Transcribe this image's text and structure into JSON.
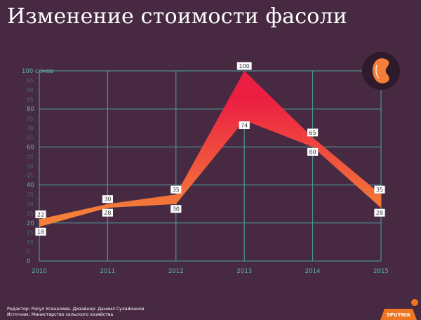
{
  "title": "Изменение стоимости фасоли",
  "credits": {
    "editor": "Редактор: Расул Усеналиев. Дизайнер: Даниил Сулайманов",
    "source": "Источник: Министерство сельского хозяйства"
  },
  "logo_text": "SPUTNIK",
  "colors": {
    "background": "#472a42",
    "grid": "#4aa7a3",
    "axis_text": "#5cb8b3",
    "band_low": "#f47f38",
    "band_high": "#ec1f43"
  },
  "icon": "bean-icon",
  "chart_data": {
    "type": "area",
    "title": "Изменение стоимости фасоли",
    "ylabel": "сомов",
    "ylim": [
      0,
      100
    ],
    "x": [
      "2010",
      "2011",
      "2012",
      "2013",
      "2014",
      "2015"
    ],
    "y_ticks": [
      {
        "value": 0,
        "label": "0",
        "major": true
      },
      {
        "value": 5,
        "label": "5",
        "major": false
      },
      {
        "value": 10,
        "label": "10",
        "major": false
      },
      {
        "value": 15,
        "label": "15",
        "major": false
      },
      {
        "value": 20,
        "label": "20",
        "major": true
      },
      {
        "value": 25,
        "label": "25",
        "major": false
      },
      {
        "value": 30,
        "label": "30",
        "major": false
      },
      {
        "value": 35,
        "label": "35",
        "major": false
      },
      {
        "value": 40,
        "label": "40",
        "major": true
      },
      {
        "value": 45,
        "label": "45",
        "major": false
      },
      {
        "value": 50,
        "label": "50",
        "major": false
      },
      {
        "value": 55,
        "label": "55",
        "major": false
      },
      {
        "value": 60,
        "label": "60",
        "major": true
      },
      {
        "value": 65,
        "label": "65",
        "major": false
      },
      {
        "value": 70,
        "label": "70",
        "major": false
      },
      {
        "value": 75,
        "label": "75",
        "major": false
      },
      {
        "value": 80,
        "label": "80",
        "major": true
      },
      {
        "value": 85,
        "label": "85",
        "major": false
      },
      {
        "value": 90,
        "label": "90",
        "major": false
      },
      {
        "value": 95,
        "label": "95",
        "major": false
      },
      {
        "value": 100,
        "label": "100 сомов",
        "major": true
      }
    ],
    "series": [
      {
        "values": [
          22,
          30,
          35,
          100,
          65,
          35
        ]
      },
      {
        "values": [
          18,
          28,
          30,
          74,
          60,
          28
        ]
      }
    ],
    "grid": true
  }
}
